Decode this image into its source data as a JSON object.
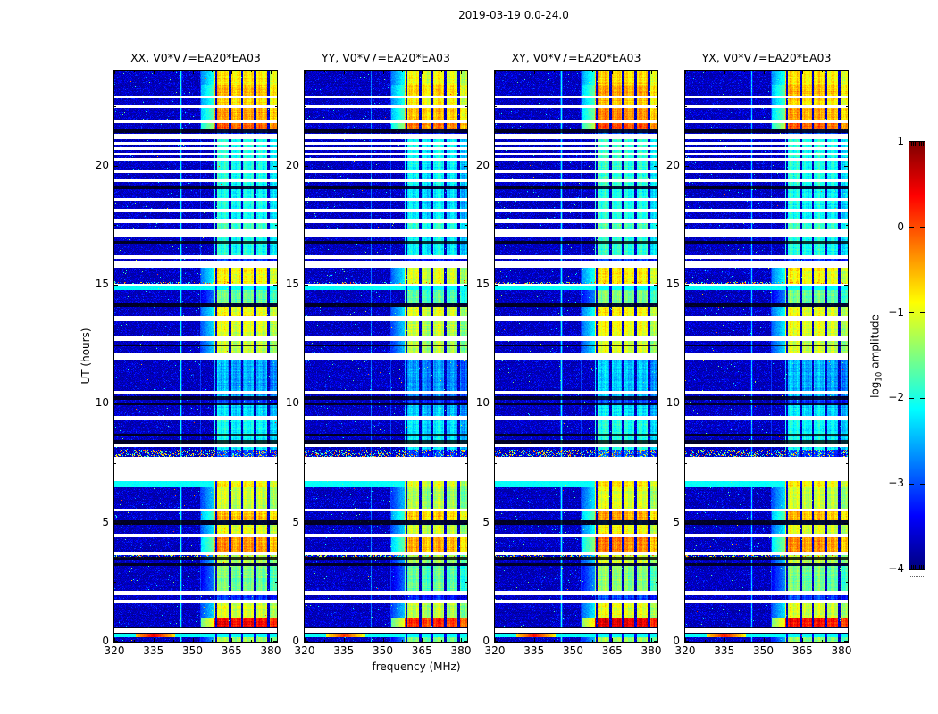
{
  "figure": {
    "title": "2019-03-19 0.0-24.0",
    "background": "#ffffff",
    "text_color": "#000000"
  },
  "chart_data": {
    "type": "heatmap",
    "colormap": "jet",
    "title": "2019-03-19 0.0-24.0",
    "x": {
      "label": "frequency (MHz)",
      "range_mhz": [
        320,
        382.4
      ],
      "tick_values": [
        320,
        335,
        350,
        365,
        380
      ],
      "tick_labels": [
        "320",
        "335",
        "350",
        "365",
        "380"
      ],
      "minor_tick_values": [
        327.5,
        342.5,
        357.5,
        372.5
      ]
    },
    "y": {
      "label": "UT (hours)",
      "range_hours": [
        0,
        24
      ],
      "tick_values": [
        0,
        5,
        10,
        15,
        20
      ],
      "tick_labels": [
        "0",
        "5",
        "10",
        "15",
        "20"
      ],
      "minor_tick_values": [
        2.5,
        7.5,
        12.5,
        17.5,
        22.5
      ]
    },
    "colorbar": {
      "label_pre": "log",
      "label_sub": "10",
      "label_post": "amplitude",
      "range": [
        -4,
        1
      ],
      "tick_values": [
        1,
        0,
        -1,
        -2,
        -3,
        -4
      ],
      "tick_labels": [
        "1",
        "0",
        "−1",
        "−2",
        "−3",
        "−4"
      ]
    },
    "panels": [
      {
        "pol": "XX",
        "title": "XX, V0*V7=EA20*EA03",
        "seed": 11,
        "band_offset": 0.0,
        "vline_amp": -2.2,
        "streak_scale": 1.0
      },
      {
        "pol": "YY",
        "title": "YY, V0*V7=EA20*EA03",
        "seed": 23,
        "band_offset": -0.1,
        "vline_amp": -2.85,
        "streak_scale": 0.75
      },
      {
        "pol": "XY",
        "title": "XY, V0*V7=EA20*EA03",
        "seed": 37,
        "band_offset": 0.1,
        "vline_amp": -2.2,
        "streak_scale": 0.9
      },
      {
        "pol": "YX",
        "title": "YX, V0*V7=EA20*EA03",
        "seed": 51,
        "band_offset": 0.05,
        "vline_amp": -2.45,
        "streak_scale": 0.85
      }
    ],
    "features": {
      "white_rows": [
        [
          0.38,
          0.55
        ],
        [
          1.62,
          1.75
        ],
        [
          1.95,
          2.12
        ],
        [
          3.62,
          3.75
        ],
        [
          4.4,
          4.52
        ],
        [
          5.48,
          5.6
        ],
        [
          6.75,
          7.76
        ],
        [
          8.18,
          8.3
        ],
        [
          9.3,
          9.5
        ],
        [
          10.42,
          10.55
        ],
        [
          11.85,
          12.12
        ],
        [
          12.62,
          12.82
        ],
        [
          13.45,
          13.68
        ],
        [
          14.92,
          15.05
        ],
        [
          15.72,
          16.0
        ],
        [
          16.1,
          16.22
        ],
        [
          17.0,
          17.32
        ],
        [
          17.6,
          17.78
        ],
        [
          18.08,
          18.18
        ],
        [
          18.52,
          18.62
        ],
        [
          19.3,
          19.42
        ],
        [
          19.7,
          19.85
        ],
        [
          20.22,
          20.32
        ],
        [
          20.45,
          20.55
        ],
        [
          20.68,
          20.78
        ],
        [
          20.9,
          21.0
        ],
        [
          21.12,
          21.35
        ],
        [
          21.8,
          21.9
        ],
        [
          22.42,
          22.55
        ],
        [
          22.83,
          22.92
        ]
      ],
      "black_rows": [
        [
          0.32,
          0.38
        ],
        [
          0.56,
          0.64
        ],
        [
          3.18,
          3.3
        ],
        [
          3.45,
          3.55
        ],
        [
          4.92,
          5.1
        ],
        [
          8.32,
          8.48
        ],
        [
          8.62,
          8.75
        ],
        [
          9.92,
          10.05
        ],
        [
          10.15,
          10.3
        ],
        [
          12.4,
          12.48
        ],
        [
          14.08,
          14.2
        ],
        [
          16.72,
          16.82
        ],
        [
          19.02,
          19.18
        ],
        [
          21.38,
          21.52
        ]
      ],
      "cyan_rows": [
        [
          0.2,
          0.32
        ],
        [
          6.5,
          6.74
        ],
        [
          14.78,
          14.92
        ]
      ],
      "speckle_rows": [
        [
          3.52,
          3.62
        ],
        [
          7.78,
          8.05
        ],
        [
          15.05,
          15.12
        ]
      ],
      "band_rows": [
        [
          0.0,
          0.2,
          -1.4
        ],
        [
          0.64,
          1.0,
          0.35
        ],
        [
          1.0,
          1.62,
          -1.1
        ],
        [
          2.12,
          3.18,
          -1.55
        ],
        [
          3.3,
          3.62,
          -1.25
        ],
        [
          3.75,
          4.4,
          -0.35
        ],
        [
          4.52,
          4.92,
          -1.0
        ],
        [
          5.1,
          5.48,
          -0.55
        ],
        [
          5.6,
          6.5,
          -1.15
        ],
        [
          6.5,
          6.74,
          -0.85
        ],
        [
          8.05,
          9.3,
          -2.1
        ],
        [
          9.5,
          9.92,
          -2.3
        ],
        [
          10.3,
          11.85,
          -2.5
        ],
        [
          12.12,
          12.62,
          -1.15
        ],
        [
          12.82,
          13.45,
          -1.05
        ],
        [
          13.68,
          14.08,
          -0.95
        ],
        [
          14.2,
          14.78,
          -1.6
        ],
        [
          15.05,
          15.72,
          -0.9
        ],
        [
          16.22,
          17.0,
          -2.0
        ],
        [
          17.32,
          17.6,
          -1.8
        ],
        [
          17.78,
          19.0,
          -2.1
        ],
        [
          19.18,
          21.12,
          -2.0
        ],
        [
          21.52,
          21.8,
          -0.1
        ],
        [
          21.9,
          22.42,
          -0.45
        ],
        [
          22.55,
          22.83,
          -0.7
        ],
        [
          22.92,
          23.4,
          -0.55
        ],
        [
          23.4,
          24.0,
          -0.8
        ]
      ],
      "rfi_band": {
        "freq_range_mhz": [
          358.5,
          382.4
        ],
        "column_edges_mhz": [
          358.8,
          364.2,
          368.8,
          373.8,
          379.0
        ],
        "narrowband_lines_mhz": [
          345.4,
          353.0
        ]
      },
      "streak": {
        "ut_range": [
          0.2,
          0.35
        ],
        "freq_range_mhz": [
          328,
          343
        ],
        "peak_mhz": 335
      }
    }
  }
}
